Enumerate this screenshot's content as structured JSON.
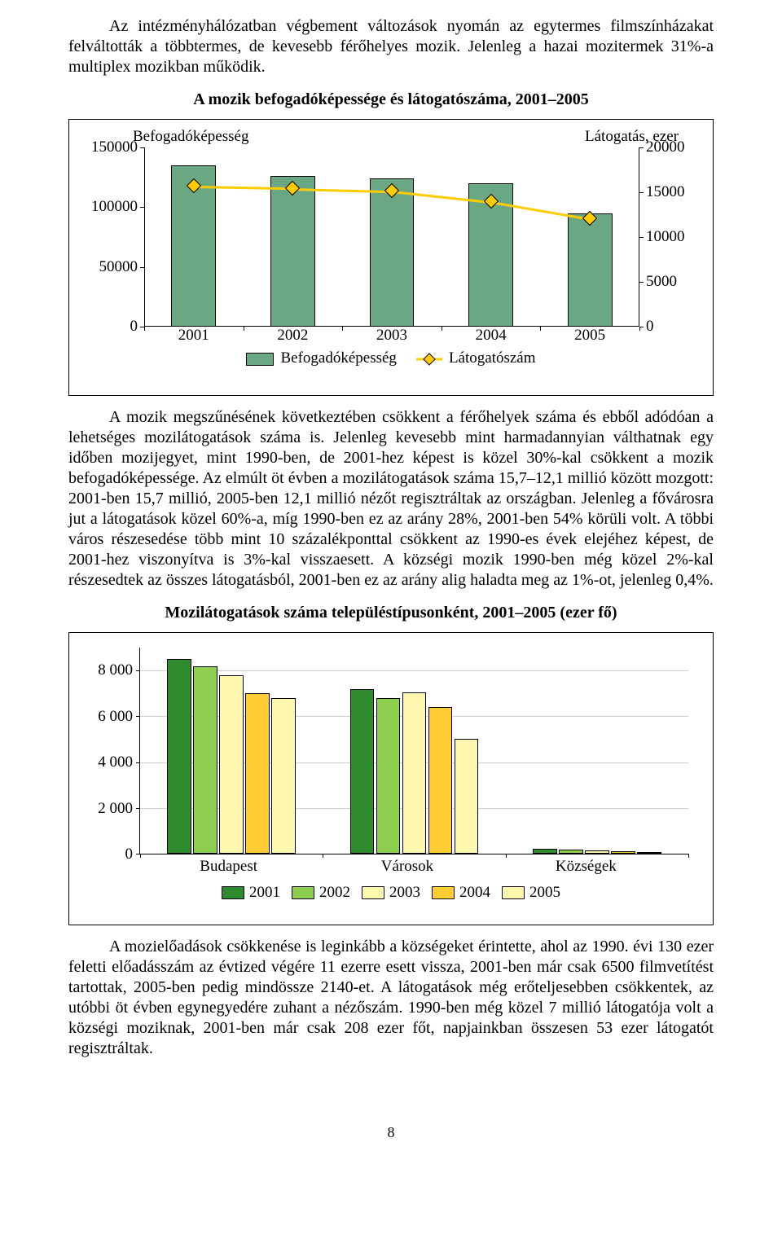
{
  "paragraphs": {
    "p1": "Az intézményhálózatban végbement változások nyomán az egytermes filmszínházakat felváltották a többtermes, de kevesebb férőhelyes mozik. Jelenleg a hazai mozitermek 31%-a multiplex mozikban működik.",
    "p2": "A mozik megszűnésének következtében csökkent a férőhelyek száma és ebből adódóan a lehetséges mozilátogatások száma is. Jelenleg kevesebb mint harmadannyian válthatnak egy időben mozijegyet, mint 1990-ben, de 2001-hez képest is közel 30%-kal csökkent a mozik befogadóképessége. Az elmúlt öt évben a mozilátogatások száma 15,7–12,1 millió között mozgott: 2001-ben 15,7 millió, 2005-ben 12,1 millió nézőt regisztráltak az országban. Jelenleg a fővárosra jut a látogatások közel 60%-a, míg 1990-ben ez az arány 28%, 2001-ben 54% körüli volt. A többi város részesedése több mint 10 százalékponttal csökkent az 1990-es évek elejéhez képest, de 2001-hez viszonyítva is 3%-kal visszaesett. A községi mozik 1990-ben még közel 2%-kal részesedtek az összes látogatásból, 2001-ben ez az arány alig haladta meg az 1%-ot, jelenleg 0,4%.",
    "p3": "A mozielőadások csökkenése is leginkább a községeket érintette, ahol az 1990. évi 130 ezer feletti előadásszám az évtized végére 11 ezerre esett vissza, 2001-ben már csak 6500 filmvetítést tartottak, 2005-ben pedig mindössze 2140-et. A látogatások még erőteljesebben csökkentek, az utóbbi öt évben egynegyedére zuhant a nézőszám. 1990-ben még közel 7 millió látogatója volt a községi moziknak, 2001-ben már csak 208 ezer főt, napjainkban összesen 53 ezer látogatót regisztráltak."
  },
  "chart1": {
    "title": "A mozik befogadóképessége és látogatószáma, 2001–2005",
    "left_axis_label": "Befogadóképesség",
    "right_axis_label": "Látogatás, ezer",
    "categories": [
      "2001",
      "2002",
      "2003",
      "2004",
      "2005"
    ],
    "bar_values": [
      135000,
      126000,
      124000,
      120000,
      95000
    ],
    "line_values": [
      15700,
      15500,
      15200,
      14000,
      12100
    ],
    "y_left_ticks": [
      0,
      50000,
      100000,
      150000
    ],
    "y_right_ticks": [
      0,
      5000,
      10000,
      15000,
      20000
    ],
    "y_left_max": 150000,
    "y_right_max": 20000,
    "bar_color": "#6aa884",
    "line_color": "#ffcc00",
    "bar_width_pct": 9,
    "plot_bg": "#ffffff",
    "font_size": 19,
    "legend": {
      "bar": "Befogadóképesség",
      "line": "Látogatószám"
    }
  },
  "chart2": {
    "title": "Mozilátogatások száma településtípusonként, 2001–2005 (ezer fő)",
    "categories": [
      "Budapest",
      "Városok",
      "Községek"
    ],
    "series": [
      {
        "label": "2001",
        "color": "#2e8b2e",
        "values": [
          8500,
          7200,
          210
        ]
      },
      {
        "label": "2002",
        "color": "#8fcf4f",
        "values": [
          8200,
          6800,
          180
        ]
      },
      {
        "label": "2003",
        "color": "#fff6b0",
        "values": [
          7800,
          7050,
          130
        ]
      },
      {
        "label": "2004",
        "color": "#ffcc33",
        "values": [
          7000,
          6400,
          90
        ]
      },
      {
        "label": "2005",
        "color": "#fff6b0",
        "values": [
          6800,
          5000,
          55
        ]
      }
    ],
    "y_ticks": [
      0,
      2000,
      4000,
      6000,
      8000
    ],
    "y_max": 9000,
    "y_tick_labels": [
      "0",
      "2 000",
      "4 000",
      "6 000",
      "8 000"
    ],
    "bar_width_pct": 4.4,
    "group_inner_gap_pct": 0.35,
    "plot_bg": "#ffffff",
    "grid_color": "#cfcfcf",
    "font_size": 19,
    "legend_labels": [
      "2001",
      "2002",
      "2003",
      "2004",
      "2005"
    ],
    "legend_colors": [
      "#2e8b2e",
      "#8fcf4f",
      "#fff6b0",
      "#ffcc33",
      "#fff6b0"
    ]
  },
  "page_number": "8"
}
